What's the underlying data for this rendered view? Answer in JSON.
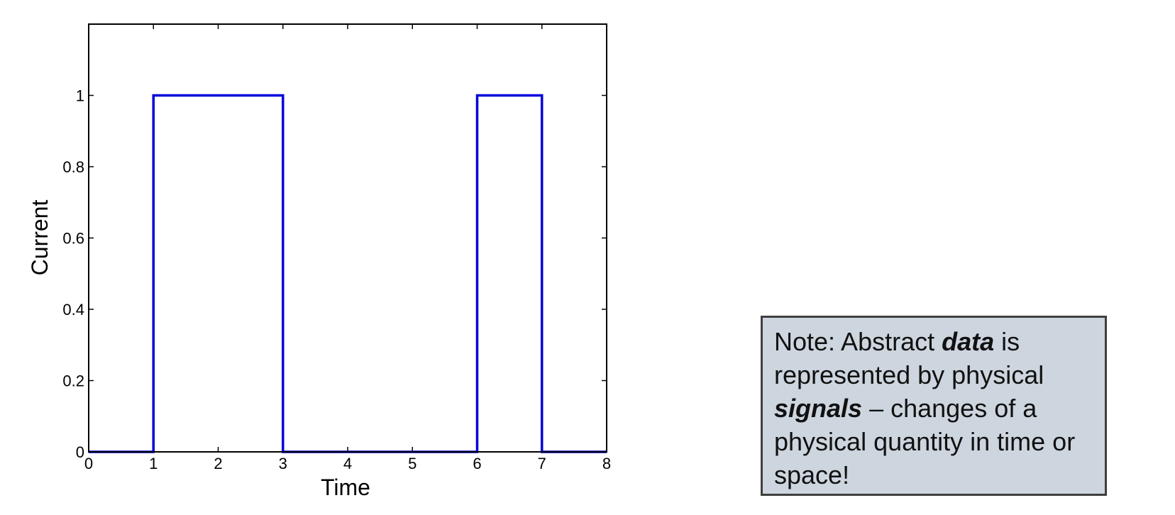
{
  "chart_data": {
    "type": "line",
    "step": true,
    "xlabel": "Time",
    "ylabel": "Current",
    "xlim": [
      0,
      8
    ],
    "ylim": [
      0,
      1.2
    ],
    "xticks": [
      "0",
      "1",
      "2",
      "3",
      "4",
      "5",
      "6",
      "7",
      "8"
    ],
    "yticks": [
      "0",
      "0.2",
      "0.4",
      "0.6",
      "0.8",
      "1"
    ],
    "grid": false,
    "line_color": "#0000dd",
    "series": [
      {
        "points": [
          [
            0,
            0
          ],
          [
            1,
            0
          ],
          [
            1,
            1
          ],
          [
            3,
            1
          ],
          [
            3,
            0
          ],
          [
            6,
            0
          ],
          [
            6,
            1
          ],
          [
            7,
            1
          ],
          [
            7,
            0
          ],
          [
            8,
            0
          ]
        ]
      }
    ]
  },
  "note": {
    "prefix": "Note: Abstract ",
    "data_word": "data",
    "middle": " is represented by physical ",
    "signals_word": "signals",
    "suffix": " – changes of a physical quantity in time or space!"
  }
}
